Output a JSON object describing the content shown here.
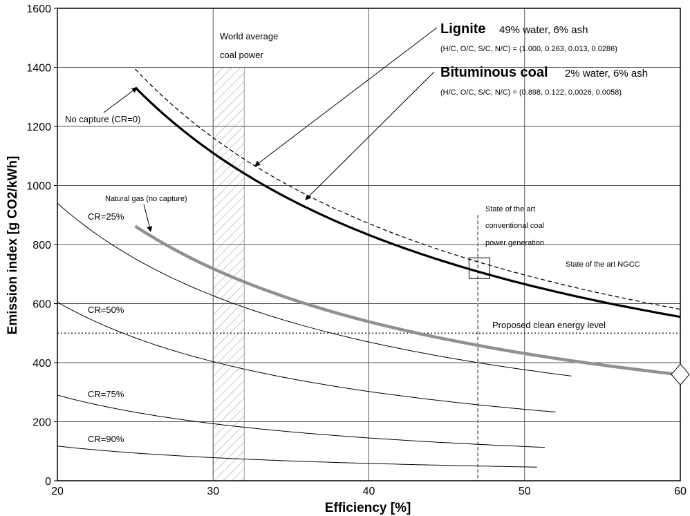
{
  "chart_data": {
    "type": "line",
    "xlabel": "Efficiency [%]",
    "ylabel": "Emission index [g CO2/kWh]",
    "xlim": [
      20,
      60
    ],
    "ylim": [
      0,
      1600
    ],
    "x_ticks": [
      "20",
      "30",
      "40",
      "50",
      "60"
    ],
    "y_ticks": [
      "0",
      "200",
      "400",
      "600",
      "800",
      "1000",
      "1200",
      "1400",
      "1600"
    ],
    "grid": "major gridlines",
    "series": [
      {
        "name": "Lignite",
        "style": "dashed",
        "color": "#000000",
        "k": 348.5,
        "x_range": [
          25,
          60
        ],
        "values": [
          [
            25,
            1394
          ],
          [
            30,
            1162
          ],
          [
            35,
            996
          ],
          [
            40,
            871
          ],
          [
            45,
            774
          ],
          [
            50,
            697
          ],
          [
            55,
            634
          ],
          [
            60,
            581
          ]
        ]
      },
      {
        "name": "Bituminous coal",
        "style": "solid-thick",
        "color": "#000000",
        "k": 333,
        "x_range": [
          25,
          60
        ],
        "values": [
          [
            25,
            1332
          ],
          [
            30,
            1110
          ],
          [
            35,
            951
          ],
          [
            40,
            833
          ],
          [
            45,
            740
          ],
          [
            50,
            666
          ],
          [
            55,
            605
          ],
          [
            60,
            555
          ]
        ]
      },
      {
        "name": "Natural gas (no capture)",
        "style": "solid-thick",
        "color": "#909090",
        "k": 215.5,
        "x_range": [
          25,
          60
        ],
        "values": [
          [
            25,
            862
          ],
          [
            30,
            718
          ],
          [
            35,
            616
          ],
          [
            40,
            539
          ],
          [
            45,
            479
          ],
          [
            50,
            431
          ],
          [
            55,
            392
          ],
          [
            60,
            359
          ]
        ]
      },
      {
        "name": "CR=25%",
        "style": "solid-thin",
        "color": "#000000",
        "k": 188,
        "x_range": [
          20,
          53
        ],
        "values": [
          [
            20,
            940
          ],
          [
            30,
            627
          ],
          [
            40,
            470
          ],
          [
            50,
            376
          ],
          [
            53,
            355
          ]
        ]
      },
      {
        "name": "CR=50%",
        "style": "solid-thin",
        "color": "#000000",
        "k": 121,
        "x_range": [
          20,
          52
        ],
        "values": [
          [
            20,
            605
          ],
          [
            30,
            403
          ],
          [
            40,
            303
          ],
          [
            50,
            242
          ],
          [
            52,
            233
          ]
        ]
      },
      {
        "name": "CR=75%",
        "style": "solid-thin",
        "color": "#000000",
        "k": 58,
        "x_range": [
          20,
          51.3
        ],
        "values": [
          [
            20,
            290
          ],
          [
            30,
            193
          ],
          [
            40,
            145
          ],
          [
            50,
            116
          ],
          [
            51.3,
            113
          ]
        ]
      },
      {
        "name": "CR=90%",
        "style": "solid-thin",
        "color": "#000000",
        "k": 23.5,
        "x_range": [
          20,
          50.8
        ],
        "values": [
          [
            20,
            118
          ],
          [
            30,
            78
          ],
          [
            40,
            59
          ],
          [
            50,
            47
          ],
          [
            50.8,
            46
          ]
        ]
      }
    ],
    "reference_lines": [
      {
        "label": "Proposed clean energy level",
        "axis": "y",
        "value": 500,
        "style": "dotted"
      },
      {
        "label": "State of the art conventional coal power generation",
        "axis": "x",
        "value": 47,
        "style": "dashed-grey"
      }
    ],
    "world_average_band": {
      "label": "World average coal power",
      "x_range": [
        30,
        32
      ]
    },
    "markers": [
      {
        "shape": "square",
        "x": 47.1,
        "y": 720
      },
      {
        "shape": "diamond",
        "x": 60,
        "y": 360,
        "label": "State of the art NGCC"
      }
    ],
    "annotations": {
      "lignite_title": "Lignite",
      "lignite_desc": "49% water, 6% ash",
      "lignite_ratios": "(H/C, O/C, S/C, N/C) = (1.000, 0.263, 0.013, 0.0286)",
      "bituminous_title": "Bituminous coal",
      "bituminous_desc": "2% water, 6% ash",
      "bituminous_ratios": "(H/C, O/C, S/C, N/C) = (0.898, 0.122, 0.0026, 0.0058)",
      "no_capture": "No capture (CR=0)",
      "natural_gas": "Natural gas (no capture)",
      "world_avg_line1": "World average",
      "world_avg_line2": "coal power",
      "sota_line1": "State of the art",
      "sota_line2": "conventional coal",
      "sota_line3": "power generation",
      "clean_level": "Proposed clean energy level",
      "ngcc": "State of the art NGCC",
      "cr25": "CR=25%",
      "cr50": "CR=50%",
      "cr75": "CR=75%",
      "cr90": "CR=90%"
    }
  }
}
